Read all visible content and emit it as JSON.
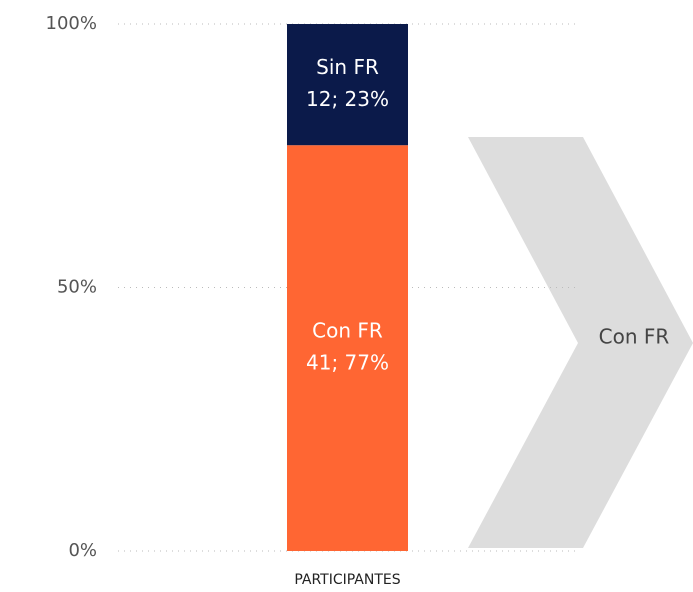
{
  "chart_data": {
    "type": "stacked_bar_100",
    "categories": [
      "PARTICIPANTES"
    ],
    "series": [
      {
        "name": "Con FR",
        "color": "#ff6633",
        "values": [
          77
        ],
        "value_labels": [
          "41; 77%"
        ]
      },
      {
        "name": "Sin FR",
        "color": "#0b1a4a",
        "values": [
          23
        ],
        "value_labels": [
          "12; 23%"
        ]
      }
    ],
    "ylim": [
      0,
      100
    ],
    "yticks": [
      {
        "value": 0,
        "label": "0%"
      },
      {
        "value": 50,
        "label": "50%"
      },
      {
        "value": 100,
        "label": "100%"
      }
    ],
    "grid": true,
    "annotation": "Con FR"
  }
}
